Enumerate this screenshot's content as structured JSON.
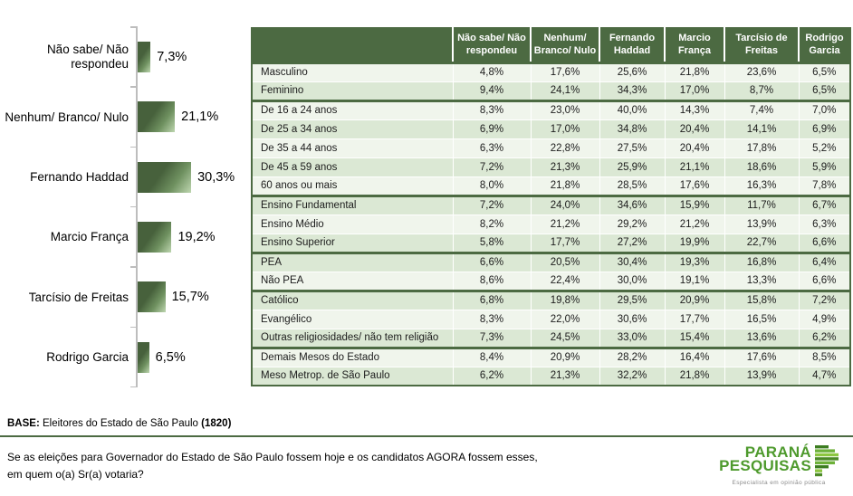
{
  "chart_data": [
    {
      "type": "bar",
      "orientation": "horizontal",
      "title": "",
      "categories": [
        "Não sabe/ Não respondeu",
        "Nenhum/ Branco/ Nulo",
        "Fernando Haddad",
        "Marcio França",
        "Tarcísio de Freitas",
        "Rodrigo Garcia"
      ],
      "values": [
        7.3,
        21.1,
        30.3,
        19.2,
        15.7,
        6.5
      ],
      "value_labels": [
        "7,3%",
        "21,1%",
        "30,3%",
        "19,2%",
        "15,7%",
        "6,5%"
      ],
      "xlim": [
        0,
        35
      ],
      "grid": false,
      "legend": false
    },
    {
      "type": "table",
      "columns": [
        "Não sabe/ Não respondeu",
        "Nenhum/ Branco/ Nulo",
        "Fernando Haddad",
        "Marcio França",
        "Tarcísio de Freitas",
        "Rodrigo Garcia"
      ],
      "groups": [
        {
          "rows": [
            {
              "label": "Masculino",
              "values": [
                "4,8%",
                "17,6%",
                "25,6%",
                "21,8%",
                "23,6%",
                "6,5%"
              ]
            },
            {
              "label": "Feminino",
              "values": [
                "9,4%",
                "24,1%",
                "34,3%",
                "17,0%",
                "8,7%",
                "6,5%"
              ]
            }
          ]
        },
        {
          "rows": [
            {
              "label": "De 16 a 24 anos",
              "values": [
                "8,3%",
                "23,0%",
                "40,0%",
                "14,3%",
                "7,4%",
                "7,0%"
              ]
            },
            {
              "label": "De 25 a 34 anos",
              "values": [
                "6,9%",
                "17,0%",
                "34,8%",
                "20,4%",
                "14,1%",
                "6,9%"
              ]
            },
            {
              "label": "De 35 a 44 anos",
              "values": [
                "6,3%",
                "22,8%",
                "27,5%",
                "20,4%",
                "17,8%",
                "5,2%"
              ]
            },
            {
              "label": "De 45 a 59 anos",
              "values": [
                "7,2%",
                "21,3%",
                "25,9%",
                "21,1%",
                "18,6%",
                "5,9%"
              ]
            },
            {
              "label": "60 anos ou mais",
              "values": [
                "8,0%",
                "21,8%",
                "28,5%",
                "17,6%",
                "16,3%",
                "7,8%"
              ]
            }
          ]
        },
        {
          "rows": [
            {
              "label": "Ensino Fundamental",
              "values": [
                "7,2%",
                "24,0%",
                "34,6%",
                "15,9%",
                "11,7%",
                "6,7%"
              ]
            },
            {
              "label": "Ensino Médio",
              "values": [
                "8,2%",
                "21,2%",
                "29,2%",
                "21,2%",
                "13,9%",
                "6,3%"
              ]
            },
            {
              "label": "Ensino Superior",
              "values": [
                "5,8%",
                "17,7%",
                "27,2%",
                "19,9%",
                "22,7%",
                "6,6%"
              ]
            }
          ]
        },
        {
          "rows": [
            {
              "label": "PEA",
              "values": [
                "6,6%",
                "20,5%",
                "30,4%",
                "19,3%",
                "16,8%",
                "6,4%"
              ]
            },
            {
              "label": "Não PEA",
              "values": [
                "8,6%",
                "22,4%",
                "30,0%",
                "19,1%",
                "13,3%",
                "6,6%"
              ]
            }
          ]
        },
        {
          "rows": [
            {
              "label": "Católico",
              "values": [
                "6,8%",
                "19,8%",
                "29,5%",
                "20,9%",
                "15,8%",
                "7,2%"
              ]
            },
            {
              "label": "Evangélico",
              "values": [
                "8,3%",
                "22,0%",
                "30,6%",
                "17,7%",
                "16,5%",
                "4,9%"
              ]
            },
            {
              "label": "Outras religiosidades/ não tem religião",
              "values": [
                "7,3%",
                "24,5%",
                "33,0%",
                "15,4%",
                "13,6%",
                "6,2%"
              ]
            }
          ]
        },
        {
          "rows": [
            {
              "label": "Demais Mesos do Estado",
              "values": [
                "8,4%",
                "20,9%",
                "28,2%",
                "16,4%",
                "17,6%",
                "8,5%"
              ]
            },
            {
              "label": "Meso Metrop. de São Paulo",
              "values": [
                "6,2%",
                "21,3%",
                "32,2%",
                "21,8%",
                "13,9%",
                "4,7%"
              ]
            }
          ]
        }
      ]
    }
  ],
  "footer": {
    "base_label": "BASE:",
    "base_text": " Eleitores do Estado de São Paulo ",
    "base_count": "(1820)",
    "question_lines": [
      "Se as eleições para Governador do Estado de São Paulo fossem hoje e os candidatos AGORA fossem esses,",
      "em quem o(a) Sr(a) votaria?"
    ]
  },
  "logo": {
    "line1": "PARANÁ",
    "line2": "PESQUISAS",
    "tagline": "Especialista em opinião pública"
  },
  "colors": {
    "header_green": "#4c6a42",
    "row_light": "#f0f5ec",
    "row_green": "#dbe8d4",
    "bar_dark": "#47613c",
    "bar_light": "#b9d2ab",
    "logo_green": "#4e9a2d",
    "axis_gray": "#bdbdbd"
  }
}
